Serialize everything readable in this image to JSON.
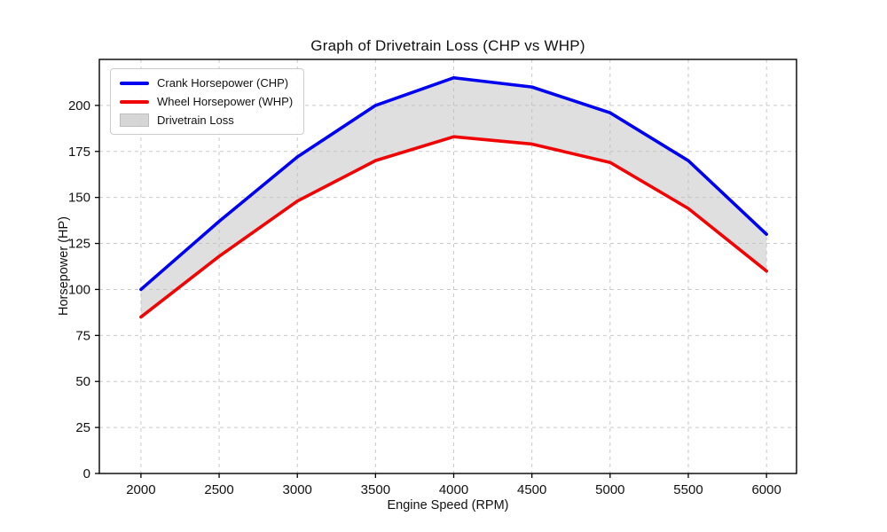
{
  "chart_data": {
    "type": "line",
    "title": "Graph of Drivetrain Loss (CHP vs WHP)",
    "xlabel": "Engine Speed (RPM)",
    "ylabel": "Horsepower (HP)",
    "x": [
      2000,
      2500,
      3000,
      3500,
      4000,
      4500,
      5000,
      5500,
      6000
    ],
    "series": [
      {
        "name": "Crank Horsepower (CHP)",
        "color": "#0000f0",
        "values": [
          100,
          137,
          172,
          200,
          215,
          210,
          196,
          170,
          130
        ]
      },
      {
        "name": "Wheel Horsepower (WHP)",
        "color": "#f00505",
        "values": [
          85,
          118,
          148,
          170,
          183,
          179,
          169,
          144,
          110
        ]
      }
    ],
    "fill_between": {
      "label": "Drivetrain Loss",
      "color": "#bfbfbf"
    },
    "x_ticks": [
      2000,
      2500,
      3000,
      3500,
      4000,
      4500,
      5000,
      5500,
      6000
    ],
    "y_ticks": [
      0,
      25,
      50,
      75,
      100,
      125,
      150,
      175,
      200
    ],
    "xlim": [
      1734,
      6192
    ],
    "ylim": [
      0,
      225
    ],
    "grid": true,
    "grid_style": "dashed",
    "grid_color": "#c9c9c9",
    "legend_position": "upper left"
  }
}
